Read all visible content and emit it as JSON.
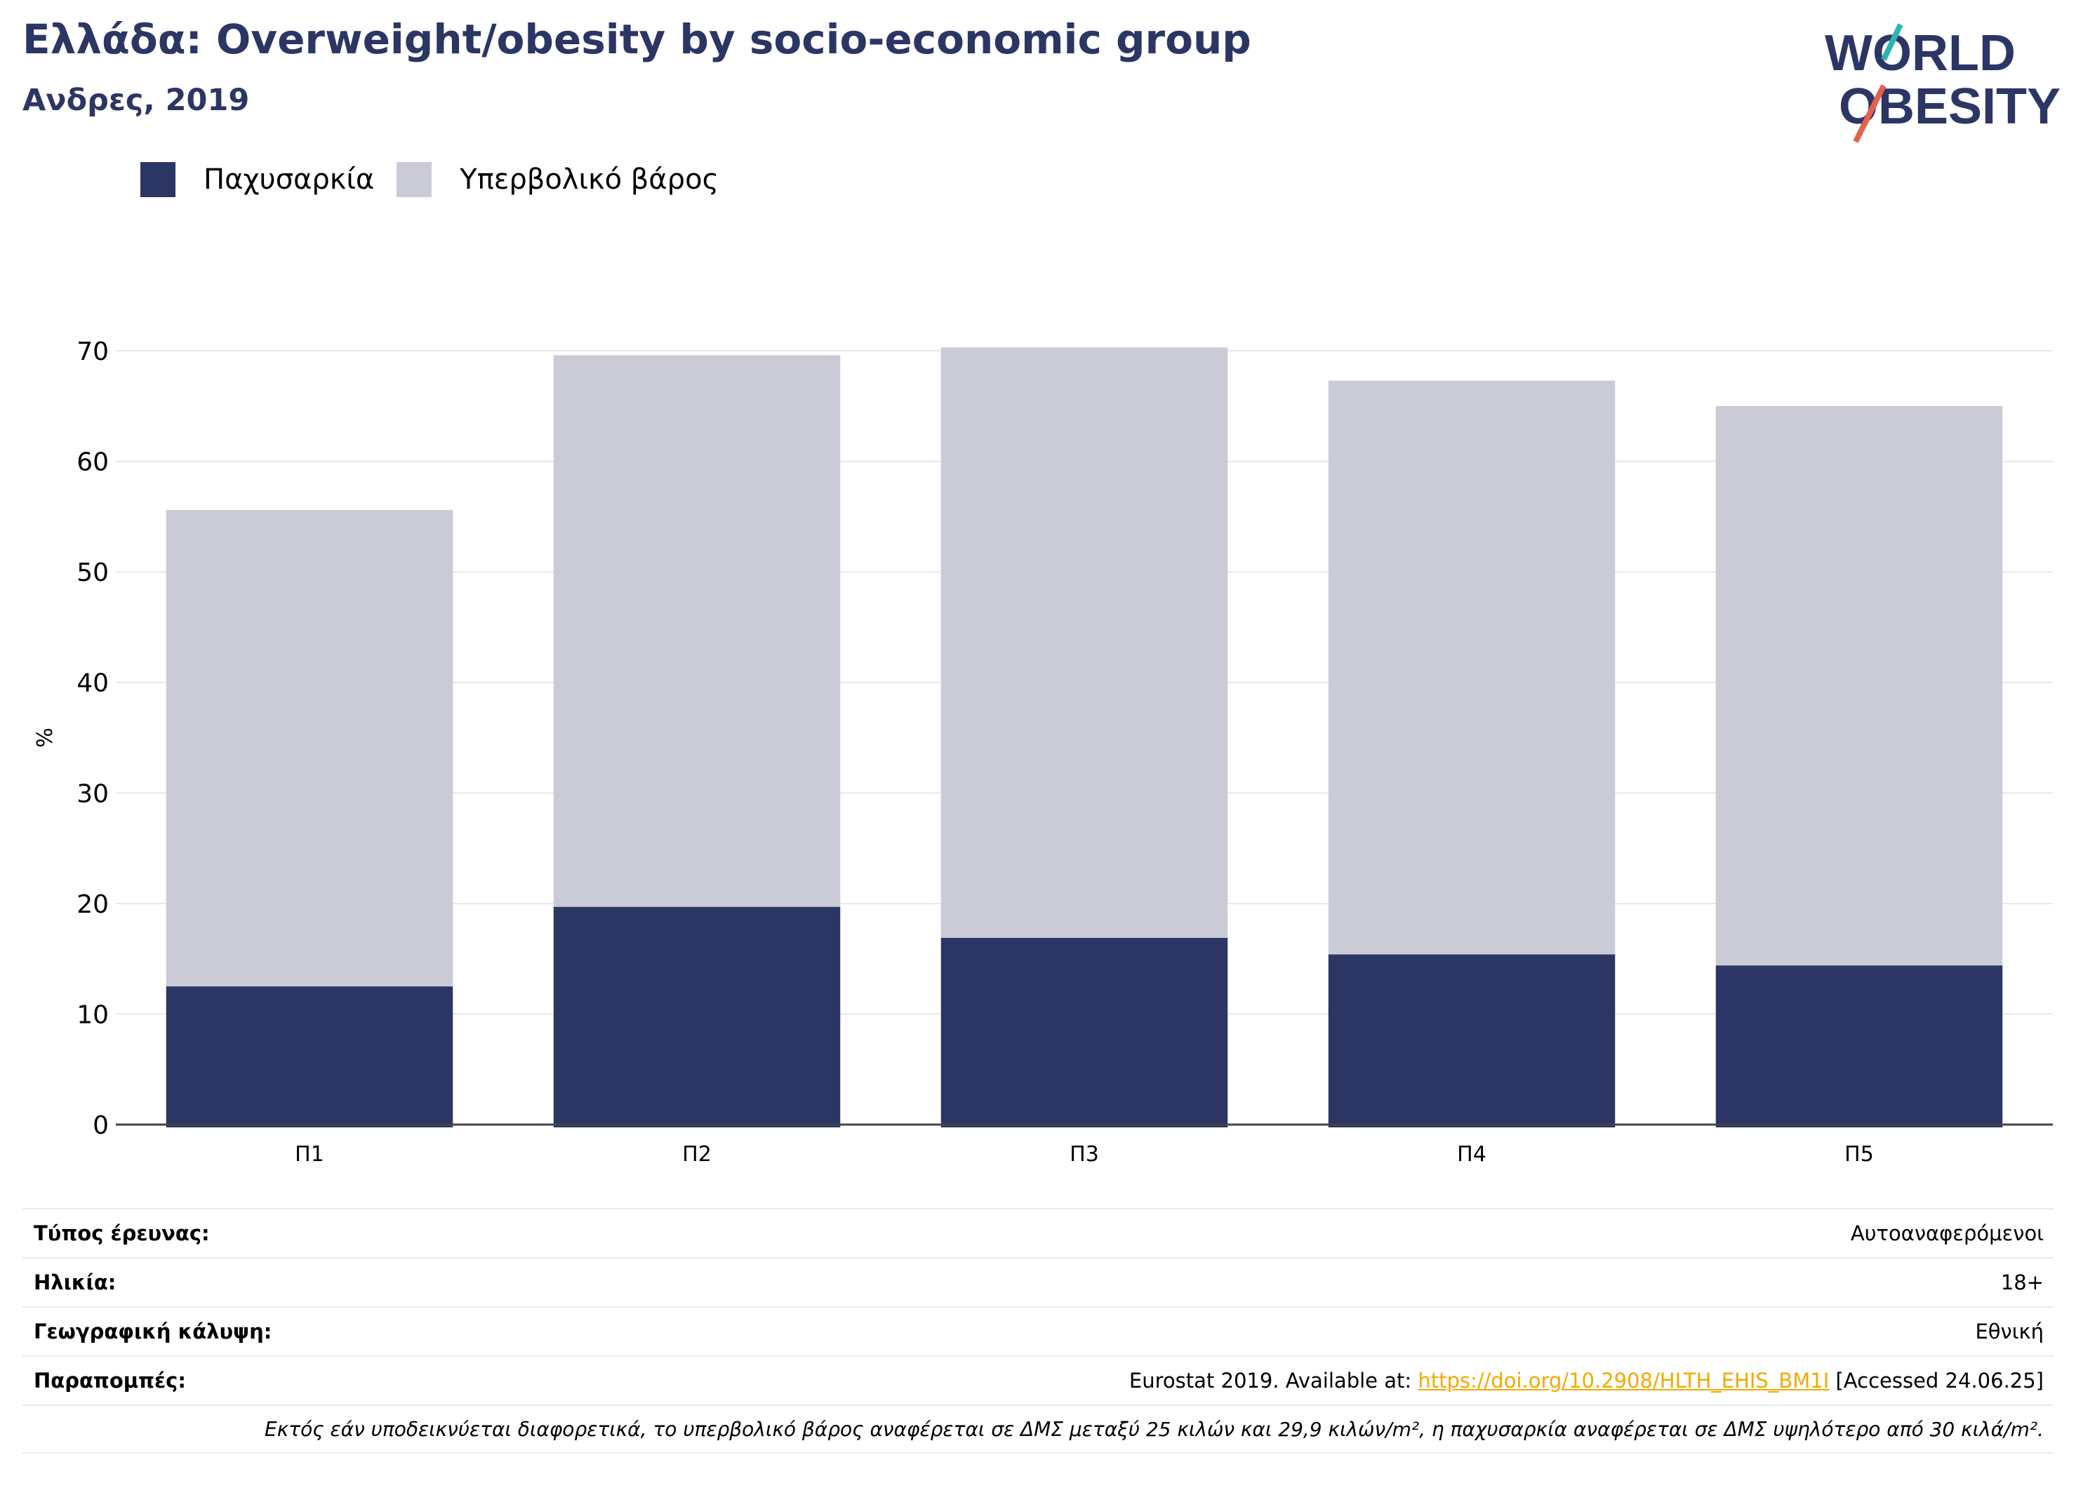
{
  "header": {
    "title": "Ελλάδα: Overweight/obesity by socio-economic group",
    "subtitle": "Ανδρες, 2019"
  },
  "logo": {
    "line1": "WORLD",
    "line2": "OBESITY"
  },
  "legend": [
    {
      "label": "Παχυσαρκία",
      "color": "#2b3664"
    },
    {
      "label": "Υπερβολικό βάρος",
      "color": "#cacbd7"
    }
  ],
  "chart_data": {
    "type": "bar",
    "stacked": true,
    "categories": [
      "Π1",
      "Π2",
      "Π3",
      "Π4",
      "Π5"
    ],
    "series": [
      {
        "name": "Παχυσαρκία",
        "color": "#2b3664",
        "values": [
          12.5,
          19.7,
          16.9,
          15.4,
          14.4
        ]
      },
      {
        "name": "Υπερβολικό βάρος",
        "color": "#cacbd7",
        "values": [
          43.1,
          49.9,
          53.4,
          51.9,
          50.6
        ]
      }
    ],
    "ylabel": "%",
    "xlabel": "",
    "ylim": [
      0,
      70
    ],
    "yticks": [
      0,
      10,
      20,
      30,
      40,
      50,
      60,
      70
    ],
    "grid": true,
    "legend_position": "top-left"
  },
  "info": {
    "rows": [
      {
        "key": "Τύπος έρευνας:",
        "value": "Αυτοαναφερόμενοι"
      },
      {
        "key": "Ηλικία:",
        "value": "18+"
      },
      {
        "key": "Γεωγραφική κάλυψη:",
        "value": "Εθνική"
      }
    ],
    "refs": {
      "key": "Παραπομπές:",
      "prefix": "Eurostat 2019. Available at: ",
      "link": "https://doi.org/10.2908/HLTH_EHIS_BM1I",
      "suffix": " [Accessed 24.06.25]"
    },
    "note": "Εκτός εάν υποδεικνύεται διαφορετικά, το υπερβολικό βάρος αναφέρεται σε ΔΜΣ μεταξύ 25 κιλών και 29,9 κιλών/m², η παχυσαρκία αναφέρεται σε ΔΜΣ υψηλότερο από 30 κιλά/m²."
  }
}
